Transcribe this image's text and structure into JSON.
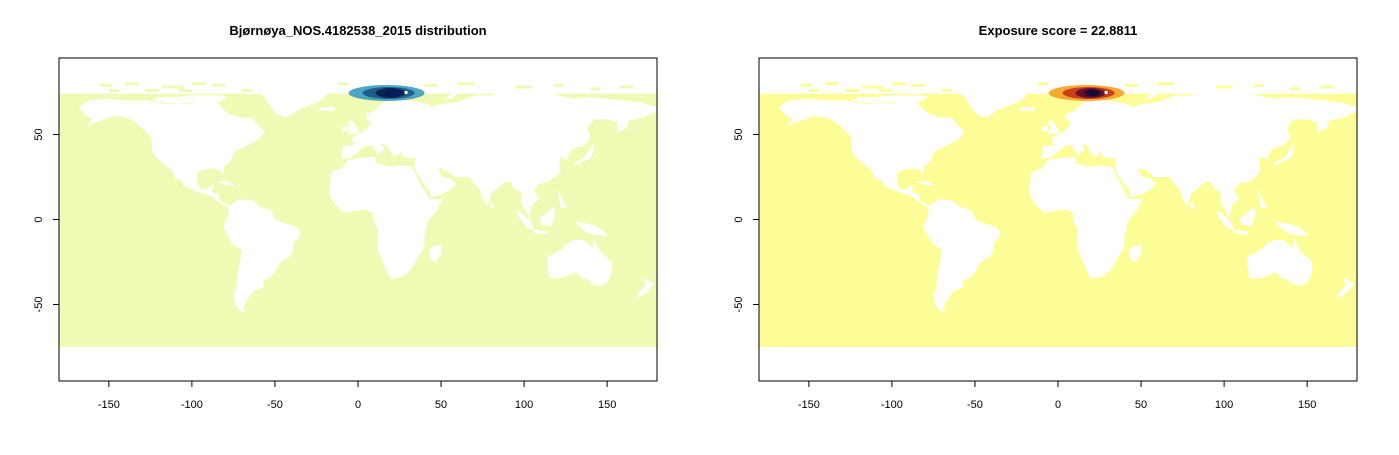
{
  "chart_data": [
    {
      "type": "heatmap",
      "title": "Bjørnøya_NOS.4182538_2015 distribution",
      "xlim": [
        -180,
        180
      ],
      "ylim": [
        -95,
        95
      ],
      "xticks": [
        -150,
        -100,
        -50,
        0,
        50,
        100,
        150
      ],
      "yticks": [
        50,
        0,
        -50
      ],
      "ocean_color": "#f0fab4",
      "land_color": "#ffffff",
      "hotspot": {
        "lon": 16,
        "lat": 75,
        "colors": [
          "#3a9dbf",
          "#1f5f8b",
          "#0b2352",
          "#081d58"
        ]
      }
    },
    {
      "type": "heatmap",
      "title": "Exposure score = 22.8811",
      "xlim": [
        -180,
        180
      ],
      "ylim": [
        -95,
        95
      ],
      "xticks": [
        -150,
        -100,
        -50,
        0,
        50,
        100,
        150
      ],
      "yticks": [
        50,
        0,
        -50
      ],
      "ocean_color": "#fdfd98",
      "land_color": "#ffffff",
      "hotspot": {
        "lon": 16,
        "lat": 75,
        "colors": [
          "#f5a020",
          "#c8401a",
          "#6a0f2a",
          "#1b0a3a"
        ]
      }
    }
  ]
}
